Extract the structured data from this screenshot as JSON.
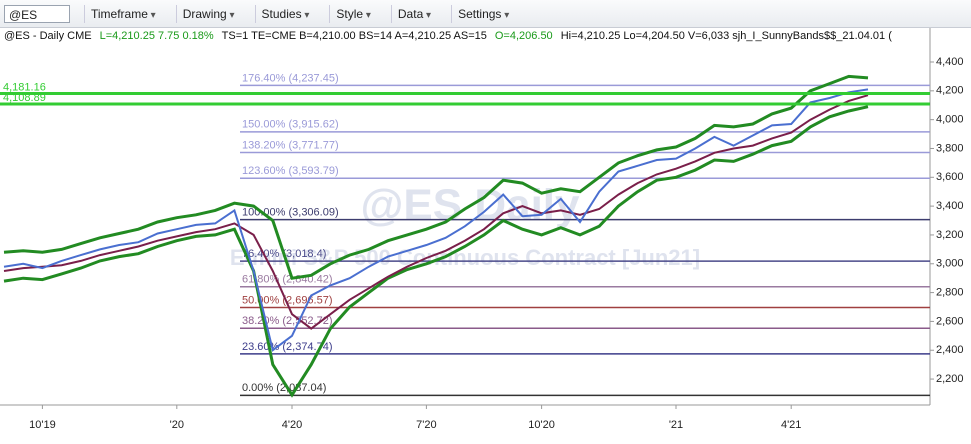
{
  "toolbar": {
    "symbol": "@ES",
    "buttons": [
      "Timeframe",
      "Drawing",
      "Studies",
      "Style",
      "Data",
      "Settings"
    ]
  },
  "chart_data": {
    "type": "line",
    "title": [
      "@ES - Daily  CME",
      "L=4,210.25  7.75  0.18%",
      "TS=1  TE=CME  B=4,210.00  BS=14  A=4,210.25  AS=15",
      "O=4,206.50",
      "Hi=4,210.25  Lo=4,204.50  V=6,033  sjh_I_SunnyBands$$_21.04.01  ("
    ],
    "watermark": "@ES Daily",
    "subtitle": "E-mini S&P 500 Continuous Contract [Jun21]",
    "categories": [
      null,
      null,
      "10'19",
      null,
      null,
      null,
      null,
      null,
      null,
      "'20",
      null,
      null,
      null,
      null,
      null,
      "4'20",
      null,
      null,
      null,
      null,
      null,
      null,
      "7'20",
      null,
      null,
      null,
      null,
      null,
      "10'20",
      null,
      null,
      null,
      null,
      null,
      null,
      "'21",
      null,
      null,
      null,
      null,
      null,
      "4'21",
      null,
      null,
      null,
      null
    ],
    "series": [
      {
        "color": "#228b22",
        "values": [
          3080,
          3090,
          3080,
          3100,
          3140,
          3180,
          3210,
          3240,
          3290,
          3320,
          3340,
          3370,
          3420,
          3400,
          3300,
          2900,
          2920,
          3000,
          3060,
          3100,
          3160,
          3200,
          3240,
          3290,
          3380,
          3460,
          3580,
          3560,
          3490,
          3520,
          3500,
          3600,
          3700,
          3750,
          3790,
          3810,
          3870,
          3960,
          3950,
          3970,
          4040,
          4080,
          4200,
          4250,
          4300,
          4290
        ]
      },
      {
        "color": "#228b22",
        "values": [
          2880,
          2900,
          2890,
          2930,
          2970,
          3020,
          3050,
          3070,
          3120,
          3160,
          3190,
          3200,
          3240,
          2950,
          2300,
          2090,
          2300,
          2550,
          2700,
          2800,
          2900,
          2960,
          3000,
          3050,
          3120,
          3200,
          3300,
          3240,
          3200,
          3250,
          3200,
          3260,
          3400,
          3500,
          3580,
          3600,
          3650,
          3720,
          3710,
          3760,
          3820,
          3850,
          3950,
          4020,
          4060,
          4090
        ]
      },
      {
        "color": "#7a1f4a",
        "values": [
          2950,
          2970,
          2980,
          2990,
          3020,
          3060,
          3090,
          3120,
          3160,
          3190,
          3220,
          3240,
          3280,
          3200,
          2950,
          2650,
          2550,
          2650,
          2750,
          2830,
          2910,
          2980,
          3040,
          3090,
          3160,
          3240,
          3350,
          3400,
          3350,
          3370,
          3340,
          3380,
          3480,
          3560,
          3620,
          3660,
          3710,
          3770,
          3800,
          3820,
          3870,
          3910,
          4000,
          4070,
          4130,
          4170
        ]
      },
      {
        "color": "#4a6fd0",
        "values": [
          2980,
          3000,
          2970,
          3020,
          3060,
          3100,
          3130,
          3150,
          3210,
          3240,
          3270,
          3280,
          3370,
          2950,
          2400,
          2500,
          2780,
          2850,
          2900,
          2980,
          3050,
          3090,
          3130,
          3180,
          3260,
          3360,
          3480,
          3330,
          3340,
          3450,
          3290,
          3500,
          3640,
          3680,
          3720,
          3730,
          3800,
          3880,
          3820,
          3890,
          3960,
          3970,
          4120,
          4150,
          4190,
          4210
        ]
      }
    ],
    "ylim": [
      2020,
      4636
    ],
    "yticks": [
      {
        "value": 2200,
        "label": "2,200"
      },
      {
        "value": 2400,
        "label": "2,400"
      },
      {
        "value": 2600,
        "label": "2,600"
      },
      {
        "value": 2800,
        "label": "2,800"
      },
      {
        "value": 3000,
        "label": "3,000"
      },
      {
        "value": 3200,
        "label": "3,200"
      },
      {
        "value": 3400,
        "label": "3,400"
      },
      {
        "value": 3600,
        "label": "3,600"
      },
      {
        "value": 3800,
        "label": "3,800"
      },
      {
        "value": 4000,
        "label": "4,000"
      },
      {
        "value": 4200,
        "label": "4,200"
      },
      {
        "value": 4400,
        "label": "4,400"
      }
    ],
    "levels": [
      {
        "label": "176.40% (4,237.45)",
        "value": 4237.45,
        "color": "#9a9ad8"
      },
      {
        "label": "150.00% (3,915.62)",
        "value": 3915.62,
        "color": "#9a9ad8"
      },
      {
        "label": "138.20% (3,771.77)",
        "value": 3771.77,
        "color": "#9a9ad8"
      },
      {
        "label": "123.60% (3,593.79)",
        "value": 3593.79,
        "color": "#9a9ad8"
      },
      {
        "label": "100.00% (3,306.09)",
        "value": 3306.09,
        "color": "#3c3c6e"
      },
      {
        "label": "76.40% (3,018.4)",
        "value": 3018.4,
        "color": "#4a4a8a"
      },
      {
        "label": "61.80% (2,840.42)",
        "value": 2840.42,
        "color": "#9a7aa0"
      },
      {
        "label": "50.00% (2,696.57)",
        "value": 2696.57,
        "color": "#a04040"
      },
      {
        "label": "38.20% (2,552.72)",
        "value": 2552.72,
        "color": "#8a5a8a"
      },
      {
        "label": "23.60% (2,374.74)",
        "value": 2374.74,
        "color": "#3c3c8a"
      },
      {
        "label": "0.00% (2,087.04)",
        "value": 2087.04,
        "color": "#333333"
      }
    ],
    "hlines": [
      {
        "label": "4,181.16",
        "value": 4181.16,
        "color": "#33cc33"
      },
      {
        "label": "4,108.89",
        "value": 4108.89,
        "color": "#33cc33"
      }
    ]
  }
}
